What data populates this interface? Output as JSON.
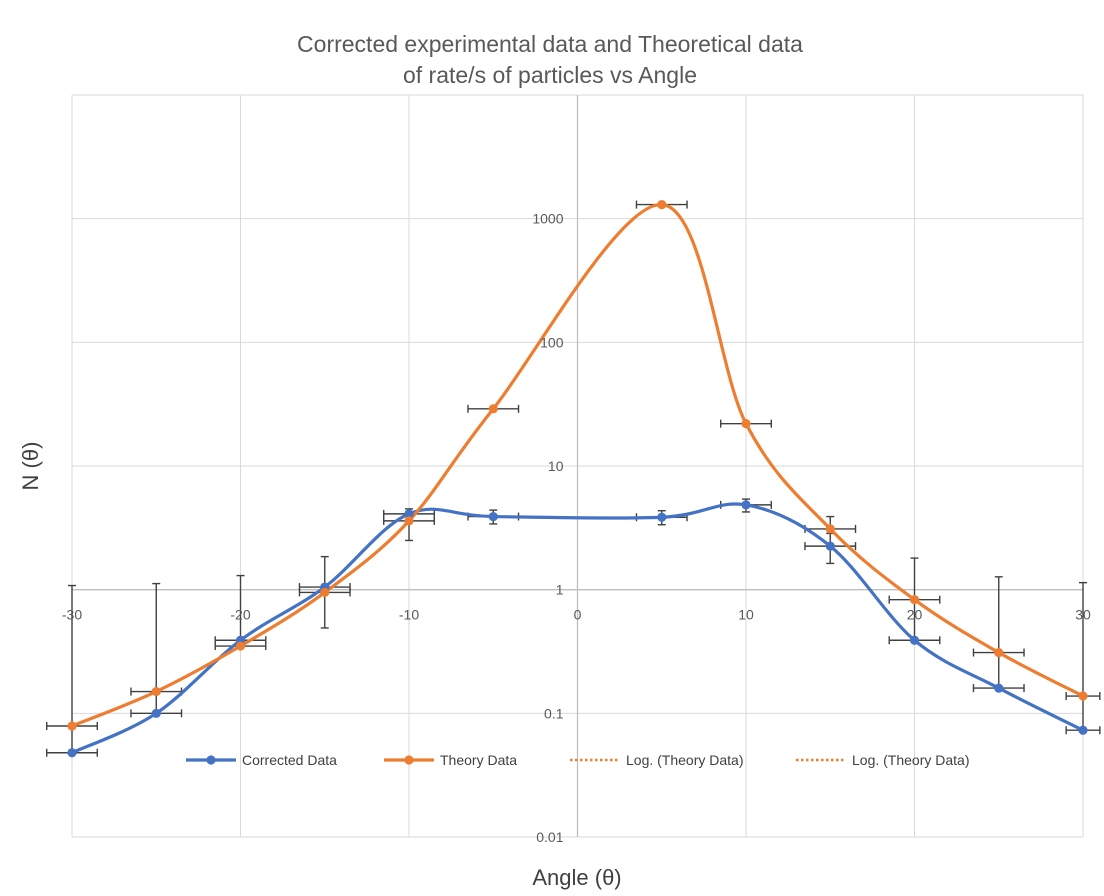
{
  "chart_data": {
    "type": "line",
    "title_lines": [
      "Corrected experimental data and Theoretical data",
      "of rate/s of particles vs Angle"
    ],
    "xlabel": "Angle (θ)",
    "ylabel": "N (θ)",
    "xlim": [
      -30,
      30
    ],
    "ylim": [
      0.01,
      10000
    ],
    "yscale": "log",
    "grid": true,
    "smoothed_lines": true,
    "legend_position": "bottom",
    "x_ticks": [
      {
        "value": -30,
        "label": "-30"
      },
      {
        "value": -20,
        "label": "-20"
      },
      {
        "value": -10,
        "label": "-10"
      },
      {
        "value": 0,
        "label": "0"
      },
      {
        "value": 10,
        "label": "10"
      },
      {
        "value": 20,
        "label": "20"
      },
      {
        "value": 30,
        "label": "30"
      }
    ],
    "y_ticks": [
      {
        "value": 0.01,
        "label": "0.01"
      },
      {
        "value": 0.1,
        "label": "0.1"
      },
      {
        "value": 1,
        "label": "1"
      },
      {
        "value": 10,
        "label": "10"
      },
      {
        "value": 100,
        "label": "100"
      },
      {
        "value": 1000,
        "label": "1000"
      }
    ],
    "series": [
      {
        "name": "Corrected Data",
        "color": "#4472C4",
        "points": [
          {
            "x": -30,
            "y": 0.048,
            "ylo": 0.048,
            "yhi": 1.08,
            "xerr": 1.5
          },
          {
            "x": -25,
            "y": 0.1,
            "ylo": 0.1,
            "yhi": 1.12,
            "xerr": 1.5
          },
          {
            "x": -20,
            "y": 0.39,
            "ylo": 0.39,
            "yhi": 1.3,
            "xerr": 1.5
          },
          {
            "x": -15,
            "y": 1.05,
            "ylo": 0.49,
            "yhi": 1.85,
            "xerr": 1.5
          },
          {
            "x": -10,
            "y": 4.1,
            "ylo": 3.6,
            "yhi": 4.5,
            "xerr": 1.5
          },
          {
            "x": -5,
            "y": 3.9,
            "ylo": 3.4,
            "yhi": 4.4,
            "xerr": 1.5
          },
          {
            "x": 5,
            "y": 3.85,
            "ylo": 3.35,
            "yhi": 4.35,
            "xerr": 1.5
          },
          {
            "x": 10,
            "y": 4.85,
            "ylo": 4.25,
            "yhi": 5.4,
            "xerr": 1.5
          },
          {
            "x": 15,
            "y": 2.25,
            "ylo": 1.63,
            "yhi": 2.85,
            "xerr": 1.5
          },
          {
            "x": 20,
            "y": 0.39,
            "ylo": 0.39,
            "yhi": 1.8,
            "xerr": 1.5
          },
          {
            "x": 25,
            "y": 0.16,
            "ylo": 0.16,
            "yhi": 1.27,
            "xerr": 1.5
          },
          {
            "x": 30,
            "y": 0.073,
            "ylo": 0.073,
            "yhi": 1.14,
            "xerr": 1.0
          }
        ]
      },
      {
        "name": "Theory Data",
        "color": "#ED7D31",
        "points": [
          {
            "x": -30,
            "y": 0.079,
            "xerr": 1.5
          },
          {
            "x": -25,
            "y": 0.15,
            "xerr": 1.5
          },
          {
            "x": -20,
            "y": 0.35,
            "xerr": 1.5
          },
          {
            "x": -15,
            "y": 0.95,
            "xerr": 1.5
          },
          {
            "x": -10,
            "y": 3.6,
            "ylo": 2.5,
            "yhi": 4.2,
            "xerr": 1.5
          },
          {
            "x": -5,
            "y": 29,
            "xerr": 1.5
          },
          {
            "x": 5,
            "y": 1300,
            "xerr": 1.5
          },
          {
            "x": 10,
            "y": 22,
            "xerr": 1.5
          },
          {
            "x": 15,
            "y": 3.1,
            "ylo": 3.1,
            "yhi": 3.9,
            "xerr": 1.5
          },
          {
            "x": 20,
            "y": 0.83,
            "xerr": 1.5
          },
          {
            "x": 25,
            "y": 0.31,
            "xerr": 1.5
          },
          {
            "x": 30,
            "y": 0.138,
            "xerr": 1.0
          }
        ]
      }
    ],
    "legend": [
      {
        "label": "Corrected Data",
        "style": "line-marker",
        "color": "#4472C4"
      },
      {
        "label": "Theory Data",
        "style": "line-marker",
        "color": "#ED7D31"
      },
      {
        "label": "Log. (Theory Data)",
        "style": "dotted",
        "color": "#ED7D31"
      },
      {
        "label": "Log. (Theory Data)",
        "style": "dotted",
        "color": "#ED7D31"
      }
    ],
    "error_bar_color": "#404040"
  }
}
